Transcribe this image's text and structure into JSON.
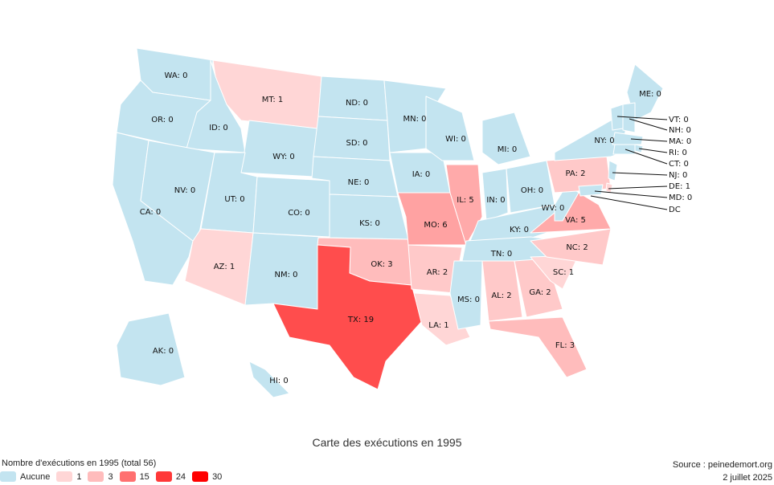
{
  "title": "Carte des exécutions en 1995",
  "legend": {
    "title": "Nombre d'exécutions en 1995 (total 56)",
    "items": [
      {
        "label": "Aucune",
        "color": "#c3e4f0"
      },
      {
        "label": "1",
        "color": "#ffd6d6"
      },
      {
        "label": "3",
        "color": "#ffbcbc"
      },
      {
        "label": "15",
        "color": "#ff7070"
      },
      {
        "label": "24",
        "color": "#ff3838"
      },
      {
        "label": "30",
        "color": "#ff0000"
      }
    ]
  },
  "source": "Source : peinedemort.org",
  "date": "2 juillet 2025",
  "colors": {
    "zero": "#c3e4f0",
    "one": "#ffd6d6",
    "two": "#ffc9c9",
    "three": "#ffbcbc",
    "five": "#ffaaaa",
    "six": "#ffa2a2",
    "nineteen": "#ff4d4d"
  },
  "states": [
    {
      "code": "WA",
      "label": "WA: 0",
      "value": 0
    },
    {
      "code": "OR",
      "label": "OR: 0",
      "value": 0
    },
    {
      "code": "CA",
      "label": "CA: 0",
      "value": 0
    },
    {
      "code": "ID",
      "label": "ID: 0",
      "value": 0
    },
    {
      "code": "NV",
      "label": "NV: 0",
      "value": 0
    },
    {
      "code": "MT",
      "label": "MT: 1",
      "value": 1
    },
    {
      "code": "WY",
      "label": "WY: 0",
      "value": 0
    },
    {
      "code": "UT",
      "label": "UT: 0",
      "value": 0
    },
    {
      "code": "AZ",
      "label": "AZ: 1",
      "value": 1
    },
    {
      "code": "CO",
      "label": "CO: 0",
      "value": 0
    },
    {
      "code": "NM",
      "label": "NM: 0",
      "value": 0
    },
    {
      "code": "ND",
      "label": "ND: 0",
      "value": 0
    },
    {
      "code": "SD",
      "label": "SD: 0",
      "value": 0
    },
    {
      "code": "NE",
      "label": "NE: 0",
      "value": 0
    },
    {
      "code": "KS",
      "label": "KS: 0",
      "value": 0
    },
    {
      "code": "OK",
      "label": "OK: 3",
      "value": 3
    },
    {
      "code": "TX",
      "label": "TX: 19",
      "value": 19
    },
    {
      "code": "MN",
      "label": "MN: 0",
      "value": 0
    },
    {
      "code": "IA",
      "label": "IA: 0",
      "value": 0
    },
    {
      "code": "MO",
      "label": "MO: 6",
      "value": 6
    },
    {
      "code": "AR",
      "label": "AR: 2",
      "value": 2
    },
    {
      "code": "LA",
      "label": "LA: 1",
      "value": 1
    },
    {
      "code": "WI",
      "label": "WI: 0",
      "value": 0
    },
    {
      "code": "IL",
      "label": "IL: 5",
      "value": 5
    },
    {
      "code": "MI",
      "label": "MI: 0",
      "value": 0
    },
    {
      "code": "IN",
      "label": "IN: 0",
      "value": 0
    },
    {
      "code": "OH",
      "label": "OH: 0",
      "value": 0
    },
    {
      "code": "KY",
      "label": "KY: 0",
      "value": 0
    },
    {
      "code": "TN",
      "label": "TN: 0",
      "value": 0
    },
    {
      "code": "MS",
      "label": "MS: 0",
      "value": 0
    },
    {
      "code": "AL",
      "label": "AL: 2",
      "value": 2
    },
    {
      "code": "GA",
      "label": "GA: 2",
      "value": 2
    },
    {
      "code": "FL",
      "label": "FL: 3",
      "value": 3
    },
    {
      "code": "SC",
      "label": "SC: 1",
      "value": 1
    },
    {
      "code": "NC",
      "label": "NC: 2",
      "value": 2
    },
    {
      "code": "VA",
      "label": "VA: 5",
      "value": 5
    },
    {
      "code": "WV",
      "label": "WV: 0",
      "value": 0
    },
    {
      "code": "PA",
      "label": "PA: 2",
      "value": 2
    },
    {
      "code": "NY",
      "label": "NY: 0",
      "value": 0
    },
    {
      "code": "ME",
      "label": "ME: 0",
      "value": 0
    },
    {
      "code": "AK",
      "label": "AK: 0",
      "value": 0
    },
    {
      "code": "HI",
      "label": "HI: 0",
      "value": 0
    },
    {
      "code": "VT",
      "label": "VT: 0",
      "value": 0
    },
    {
      "code": "NH",
      "label": "NH: 0",
      "value": 0
    },
    {
      "code": "MA",
      "label": "MA: 0",
      "value": 0
    },
    {
      "code": "RI",
      "label": "RI: 0",
      "value": 0
    },
    {
      "code": "CT",
      "label": "CT: 0",
      "value": 0
    },
    {
      "code": "NJ",
      "label": "NJ: 0",
      "value": 0
    },
    {
      "code": "DE",
      "label": "DE: 1",
      "value": 1
    },
    {
      "code": "MD",
      "label": "MD: 0",
      "value": 0
    },
    {
      "code": "DC",
      "label": "DC",
      "value": 0
    }
  ]
}
